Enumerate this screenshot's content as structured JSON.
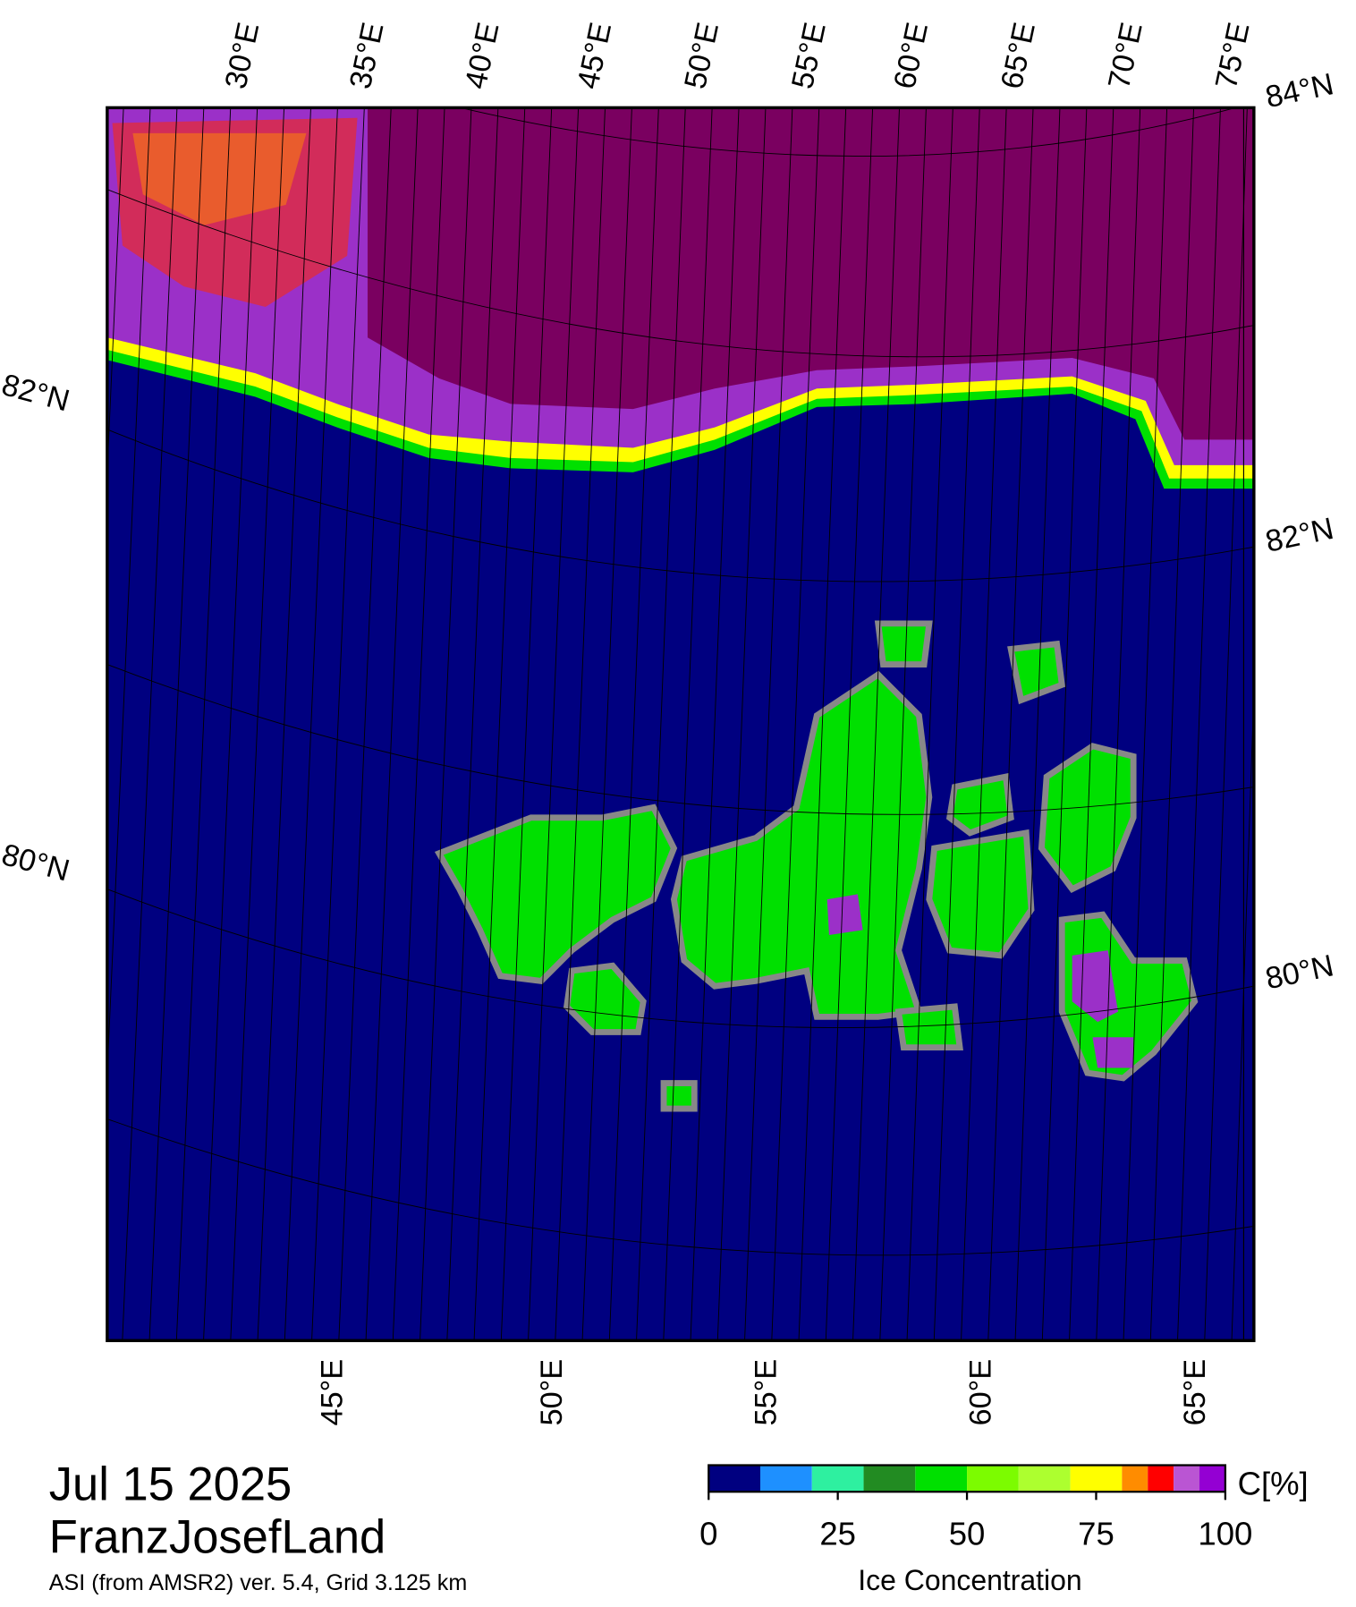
{
  "map": {
    "date": "Jul 15 2025",
    "region": "FranzJosefLand",
    "source": "ASI (from AMSR2) ver. 5.4,  Grid 3.125 km",
    "top_lon_labels": [
      "30°E",
      "35°E",
      "40°E",
      "45°E",
      "50°E",
      "55°E",
      "60°E",
      "65°E",
      "70°E",
      "75°E"
    ],
    "bottom_lon_labels": [
      "45°E",
      "50°E",
      "55°E",
      "60°E",
      "65°E"
    ],
    "right_lat_labels": [
      "84°N",
      "82°N",
      "80°N"
    ],
    "left_lat_labels": [
      "82°N",
      "80°N"
    ]
  },
  "colorbar": {
    "title": "Ice Concentration",
    "unit": "C[%]",
    "bounds": [
      0,
      10,
      20,
      30,
      40,
      50,
      60,
      70,
      80,
      85,
      90,
      95,
      100
    ],
    "colors": [
      "#000080",
      "#1e90ff",
      "#2ef0a0",
      "#228b22",
      "#00e000",
      "#7cfc00",
      "#adff2f",
      "#ffff00",
      "#ff8c00",
      "#ff0000",
      "#ba55d3",
      "#9400d3"
    ],
    "ticks": [
      0,
      25,
      50,
      75,
      100
    ]
  }
}
